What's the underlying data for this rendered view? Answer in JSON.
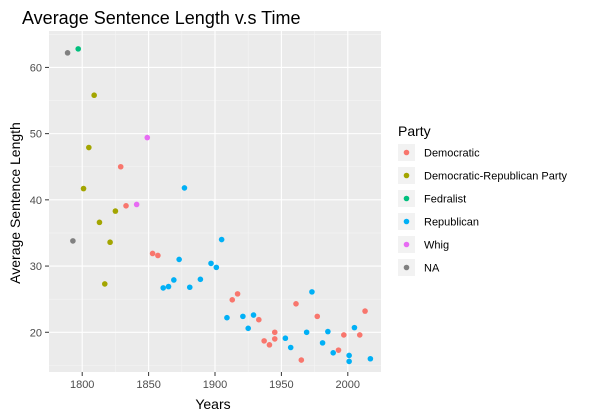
{
  "chart_data": {
    "type": "scatter",
    "title": "Average Sentence Length v.s Time",
    "xlabel": "Years",
    "ylabel": "Average Sentence Length",
    "xlim": [
      1775,
      2025
    ],
    "ylim": [
      14,
      65.5
    ],
    "x_ticks": [
      1800,
      1850,
      1900,
      1950,
      2000
    ],
    "y_ticks": [
      20,
      30,
      40,
      50,
      60
    ],
    "grid": true,
    "legend_title": "Party",
    "legend_position": "right",
    "series": [
      {
        "name": "Democratic",
        "color": "#F8766D",
        "points": [
          [
            1829,
            45.0
          ],
          [
            1833,
            39.1
          ],
          [
            1853,
            31.9
          ],
          [
            1857,
            31.6
          ],
          [
            1913,
            24.9
          ],
          [
            1917,
            25.8
          ],
          [
            1933,
            21.9
          ],
          [
            1937,
            18.7
          ],
          [
            1941,
            18.1
          ],
          [
            1945,
            20.0
          ],
          [
            1945,
            19.0
          ],
          [
            1961,
            24.3
          ],
          [
            1965,
            15.8
          ],
          [
            1977,
            22.4
          ],
          [
            1993,
            17.3
          ],
          [
            1997,
            19.6
          ],
          [
            2009,
            19.6
          ],
          [
            2013,
            23.2
          ]
        ]
      },
      {
        "name": "Democratic-Republican Party",
        "color": "#A3A500",
        "points": [
          [
            1801,
            41.7
          ],
          [
            1805,
            47.9
          ],
          [
            1809,
            55.8
          ],
          [
            1813,
            36.6
          ],
          [
            1817,
            27.3
          ],
          [
            1821,
            33.6
          ],
          [
            1825,
            38.3
          ]
        ]
      },
      {
        "name": "Fedralist",
        "color": "#00BF7D",
        "points": [
          [
            1797,
            62.8
          ]
        ]
      },
      {
        "name": "Republican",
        "color": "#00B0F6",
        "points": [
          [
            1861,
            26.7
          ],
          [
            1865,
            26.9
          ],
          [
            1869,
            27.9
          ],
          [
            1873,
            31.0
          ],
          [
            1877,
            41.8
          ],
          [
            1881,
            26.8
          ],
          [
            1889,
            28.0
          ],
          [
            1897,
            30.4
          ],
          [
            1901,
            29.8
          ],
          [
            1905,
            34.0
          ],
          [
            1909,
            22.2
          ],
          [
            1921,
            22.4
          ],
          [
            1925,
            20.6
          ],
          [
            1929,
            22.6
          ],
          [
            1953,
            19.1
          ],
          [
            1957,
            17.7
          ],
          [
            1969,
            20.0
          ],
          [
            1973,
            26.1
          ],
          [
            1981,
            18.4
          ],
          [
            1985,
            20.1
          ],
          [
            1989,
            16.9
          ],
          [
            2001,
            16.5
          ],
          [
            2001,
            15.6
          ],
          [
            2005,
            20.7
          ],
          [
            2017,
            16.0
          ]
        ]
      },
      {
        "name": "Whig",
        "color": "#E76BF3",
        "points": [
          [
            1841,
            39.3
          ],
          [
            1849,
            49.4
          ]
        ]
      },
      {
        "name": "NA",
        "color": "#808080",
        "points": [
          [
            1789,
            62.2
          ],
          [
            1793,
            33.8
          ]
        ]
      }
    ]
  }
}
